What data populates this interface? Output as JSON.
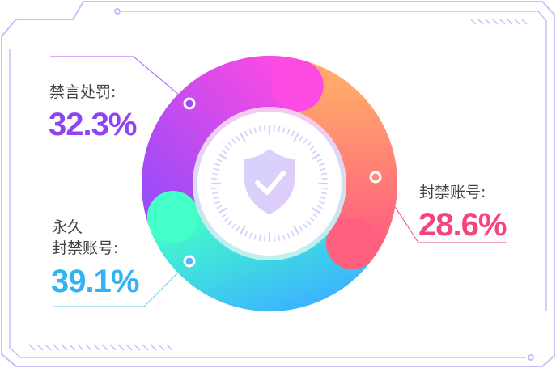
{
  "segments": [
    {
      "label": "禁言处罚:",
      "value": "32.3%",
      "color": "#8e44f5"
    },
    {
      "label": "封禁账号:",
      "value": "28.6%",
      "color": "#f5467c"
    },
    {
      "label_line1": "永久",
      "label_line2": "封禁账号:",
      "value": "39.1%",
      "color": "#33b4f0"
    }
  ],
  "center_icon": "shield-check-icon"
}
